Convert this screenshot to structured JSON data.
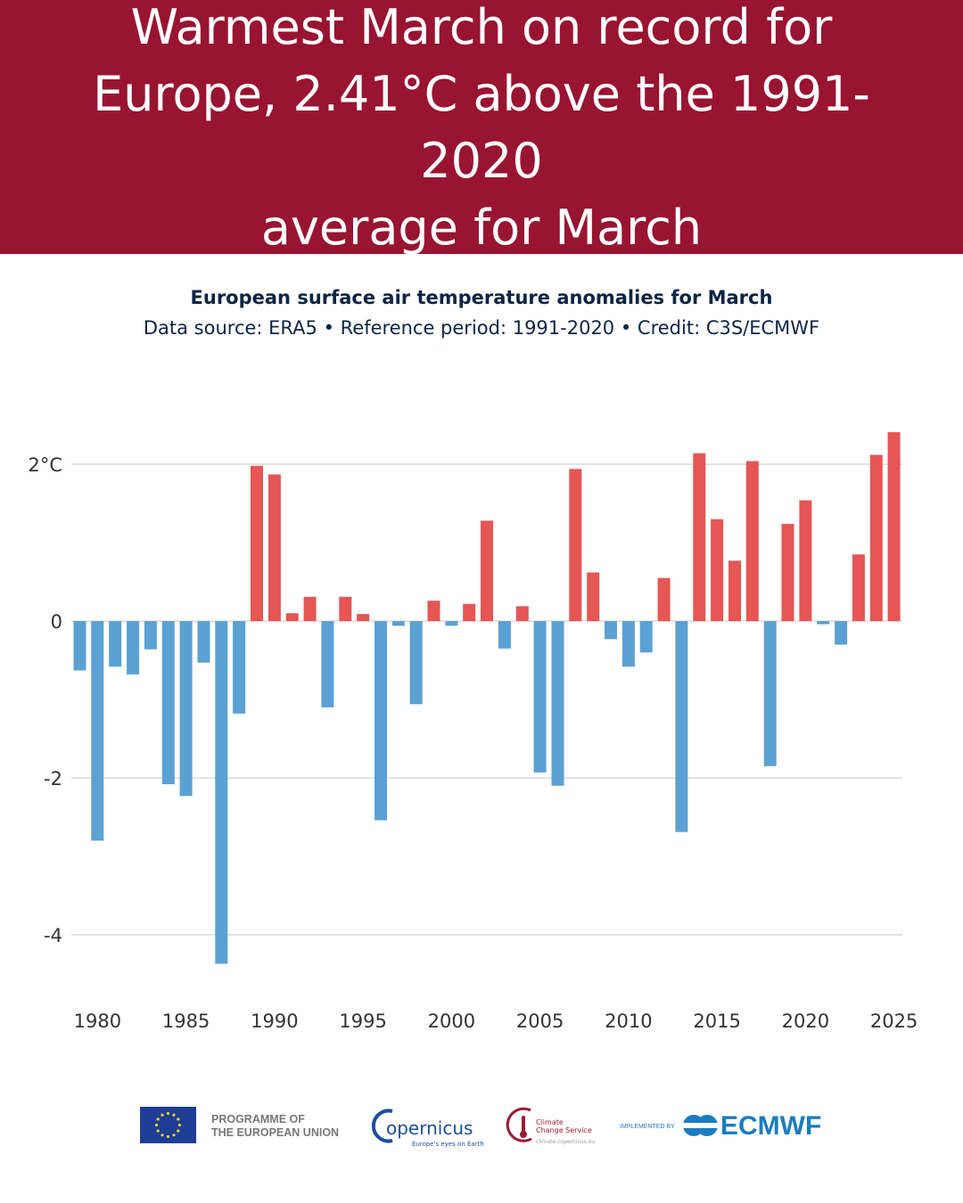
{
  "banner": {
    "headline_line1": "Warmest March on record for",
    "headline_line2": "Europe, 2.41°C above the 1991-2020",
    "headline_line3": "average for March",
    "background_color": "#981431"
  },
  "chart_data": {
    "type": "bar",
    "title": "European surface air temperature anomalies for March",
    "subtitle": "Data source: ERA5 • Reference period: 1991-2020 • Credit: C3S/ECMWF",
    "xlabel": "",
    "ylabel": "",
    "ylim": [
      -4.6,
      2.7
    ],
    "yticks": [
      {
        "value": 2,
        "label": "2°C"
      },
      {
        "value": 0,
        "label": "0"
      },
      {
        "value": -2,
        "label": "-2"
      },
      {
        "value": -4,
        "label": "-4"
      }
    ],
    "xticks": [
      1980,
      1985,
      1990,
      1995,
      2000,
      2005,
      2010,
      2015,
      2020,
      2025
    ],
    "grid": true,
    "positive_color": "#e55655",
    "negative_color": "#5ba1d4",
    "years": [
      1979,
      1980,
      1981,
      1982,
      1983,
      1984,
      1985,
      1986,
      1987,
      1988,
      1989,
      1990,
      1991,
      1992,
      1993,
      1994,
      1995,
      1996,
      1997,
      1998,
      1999,
      2000,
      2001,
      2002,
      2003,
      2004,
      2005,
      2006,
      2007,
      2008,
      2009,
      2010,
      2011,
      2012,
      2013,
      2014,
      2015,
      2016,
      2017,
      2018,
      2019,
      2020,
      2021,
      2022,
      2023,
      2024,
      2025
    ],
    "values": [
      -0.63,
      -2.8,
      -0.58,
      -0.68,
      -0.36,
      -2.08,
      -2.23,
      -0.53,
      -4.37,
      -1.18,
      1.98,
      1.87,
      0.1,
      0.31,
      -1.1,
      0.31,
      0.09,
      -2.54,
      -0.06,
      -1.06,
      0.26,
      -0.06,
      0.22,
      1.28,
      -0.35,
      0.19,
      -1.93,
      -2.1,
      1.94,
      0.62,
      -0.23,
      -0.58,
      -0.4,
      0.55,
      -2.69,
      2.14,
      1.3,
      0.77,
      2.04,
      -1.85,
      1.24,
      1.54,
      -0.04,
      -0.3,
      0.85,
      2.12,
      2.41
    ]
  },
  "footer": {
    "eu_label_line1": "PROGRAMME OF",
    "eu_label_line2": "THE EUROPEAN UNION",
    "copernicus_name": "opernicus",
    "copernicus_tagline": "Europe's eyes on Earth",
    "c3s_line1": "Climate",
    "c3s_line2": "Change Service",
    "c3s_url": "climate.copernicus.eu",
    "implemented_by": "IMPLEMENTED BY",
    "ecmwf_name": "ECMWF"
  }
}
